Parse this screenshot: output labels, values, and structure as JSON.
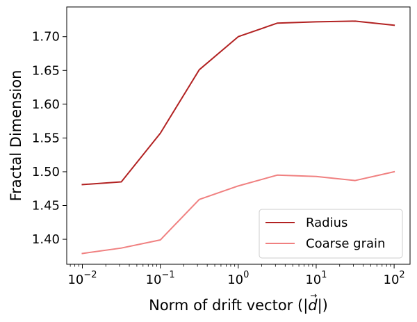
{
  "chart_data": {
    "type": "line",
    "title": "",
    "xlabel_prefix": "Norm of drift vector (|",
    "xlabel_var": "d",
    "xlabel_arrow": "→",
    "xlabel_suffix": "|)",
    "ylabel": "Fractal Dimension",
    "x_scale": "log",
    "xlim": [
      0.0063,
      160
    ],
    "ylim": [
      1.363,
      1.744
    ],
    "x_ticks": [
      {
        "value": 0.01,
        "base": "10",
        "exp": "−2"
      },
      {
        "value": 0.1,
        "base": "10",
        "exp": "−1"
      },
      {
        "value": 1,
        "base": "10",
        "exp": "0"
      },
      {
        "value": 10,
        "base": "10",
        "exp": "1"
      },
      {
        "value": 100,
        "base": "10",
        "exp": "2"
      }
    ],
    "y_ticks": [
      {
        "value": 1.4,
        "label": "1.40"
      },
      {
        "value": 1.45,
        "label": "1.45"
      },
      {
        "value": 1.5,
        "label": "1.50"
      },
      {
        "value": 1.55,
        "label": "1.55"
      },
      {
        "value": 1.6,
        "label": "1.60"
      },
      {
        "value": 1.65,
        "label": "1.65"
      },
      {
        "value": 1.7,
        "label": "1.70"
      }
    ],
    "grid": false,
    "legend_position": "lower-right",
    "x": [
      0.01,
      0.0316,
      0.1,
      0.316,
      1,
      3.16,
      10,
      31.6,
      100
    ],
    "series": [
      {
        "name": "Radius",
        "color": "#b22222",
        "values": [
          1.481,
          1.485,
          1.557,
          1.651,
          1.7,
          1.72,
          1.722,
          1.723,
          1.717
        ]
      },
      {
        "name": "Coarse grain",
        "color": "#f08080",
        "values": [
          1.379,
          1.387,
          1.399,
          1.459,
          1.479,
          1.495,
          1.493,
          1.487,
          1.5
        ]
      }
    ]
  }
}
